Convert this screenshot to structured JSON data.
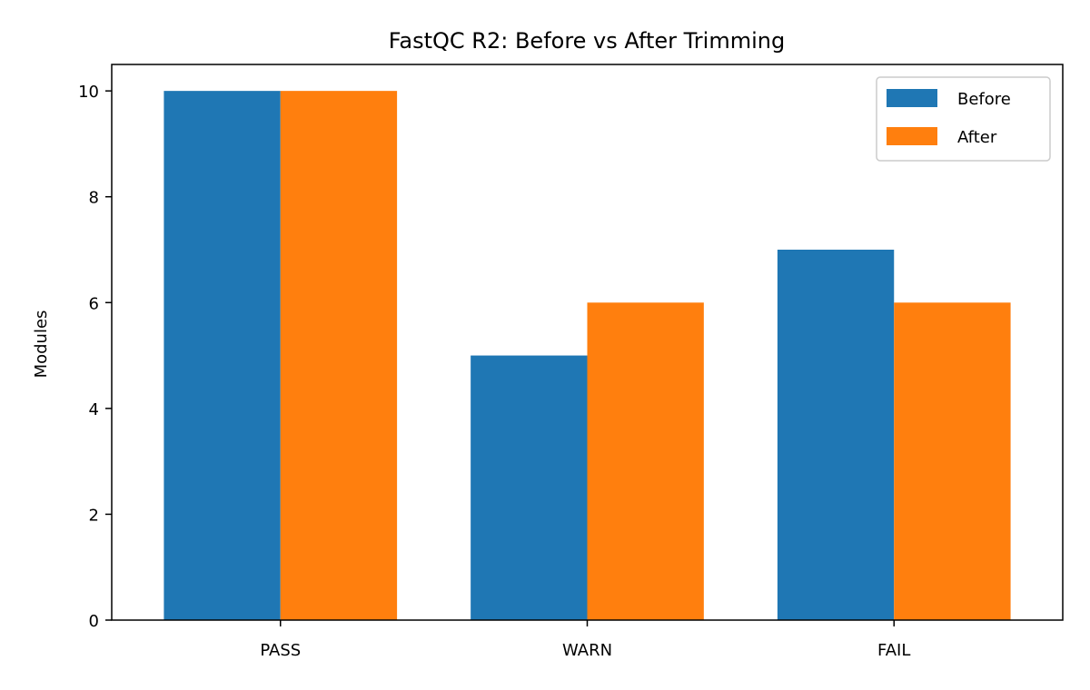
{
  "chart_data": {
    "type": "bar",
    "title": "FastQC R2: Before vs After Trimming",
    "xlabel": "",
    "ylabel": "Modules",
    "categories": [
      "PASS",
      "WARN",
      "FAIL"
    ],
    "series": [
      {
        "name": "Before",
        "values": [
          10,
          5,
          7
        ],
        "color": "#1f77b4"
      },
      {
        "name": "After",
        "values": [
          10,
          6,
          6
        ],
        "color": "#ff7f0e"
      }
    ],
    "ylim": [
      0,
      10.5
    ],
    "yticks": [
      0,
      2,
      4,
      6,
      8,
      10
    ],
    "grid": false,
    "legend_position": "top-right"
  }
}
